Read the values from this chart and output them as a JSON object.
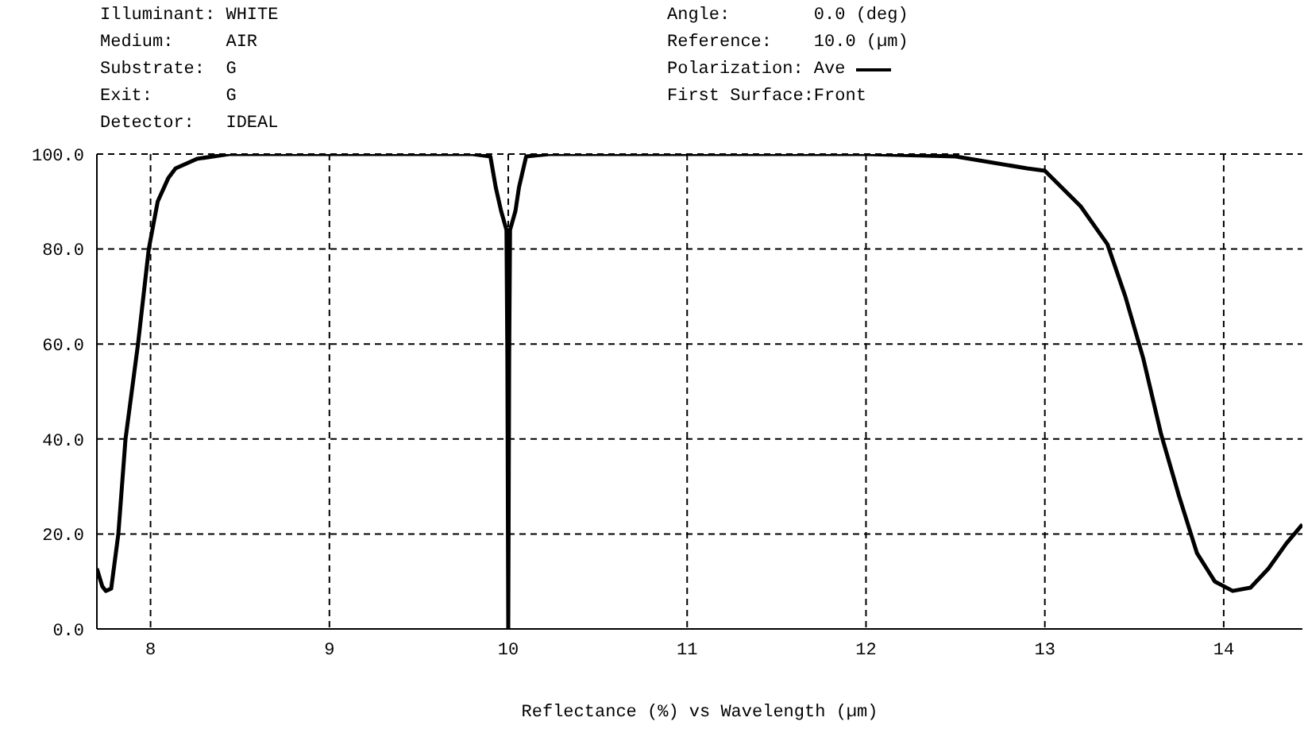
{
  "chart_data": {
    "type": "line",
    "xlabel": "Reflectance (%)  vs  Wavelength (µm)",
    "annotations": [
      "Illuminant: WHITE",
      "Medium:     AIR",
      "Substrate:  G",
      "Exit:       G",
      "Detector:   IDEAL",
      "Angle:        0.0 (deg)",
      "Reference:    10.0 (µm)",
      "First Surface:Front"
    ],
    "legend_title": "Polarization:",
    "legend": "top",
    "grid": true,
    "marker": "none",
    "line_style": "solid",
    "x": [
      7.7,
      7.73,
      7.75,
      7.78,
      7.82,
      7.86,
      7.93,
      7.99,
      8.04,
      8.1,
      8.14,
      8.26,
      8.44,
      9.8,
      9.9,
      9.93,
      9.96,
      9.99,
      9.995,
      10.0,
      10.005,
      10.01,
      10.04,
      10.06,
      10.1,
      10.23,
      12.0,
      12.5,
      12.9,
      13.0,
      13.2,
      13.35,
      13.45,
      13.55,
      13.65,
      13.75,
      13.85,
      13.95,
      14.05,
      14.15,
      14.25,
      14.35,
      14.44
    ],
    "series": [
      {
        "name": "Ave",
        "color": "#000000",
        "values": [
          12.7,
          9,
          8,
          8.5,
          20,
          40,
          60,
          80,
          90,
          95,
          97,
          99,
          100,
          100,
          99.5,
          93,
          88,
          84,
          57,
          0,
          57,
          84,
          88,
          93,
          99.5,
          100,
          100,
          99.5,
          97,
          96.5,
          89,
          81,
          70,
          57,
          41,
          28,
          16,
          10,
          8,
          8.7,
          12.7,
          18,
          22
        ]
      }
    ],
    "xlim": [
      7.7,
      14.44
    ],
    "xticks": [
      8,
      9,
      10,
      11,
      12,
      13,
      14
    ],
    "ylim": [
      0,
      100
    ],
    "yticks": [
      {
        "value": 0,
        "label": "0.0"
      },
      {
        "value": 20,
        "label": "20.0"
      },
      {
        "value": 40,
        "label": "40.0"
      },
      {
        "value": 60,
        "label": "60.0"
      },
      {
        "value": 80,
        "label": "80.0"
      },
      {
        "value": 100,
        "label": "100.0"
      }
    ]
  }
}
